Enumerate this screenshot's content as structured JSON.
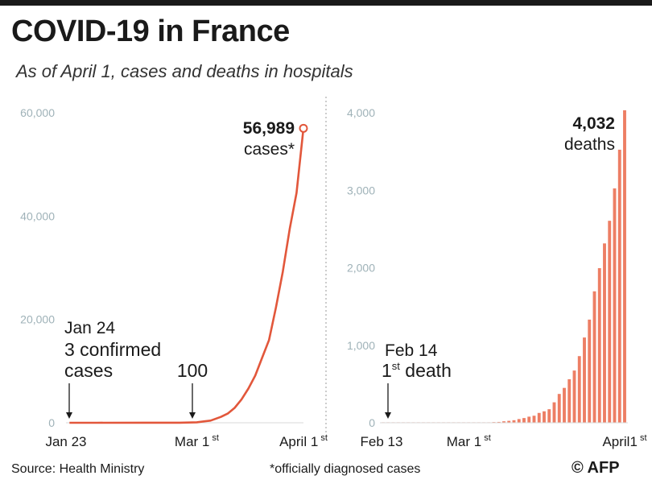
{
  "title": "COVID-19 in France",
  "subtitle": "As of April 1, cases and deaths in hospitals",
  "footer": {
    "source": "Source: Health Ministry",
    "note": "*officially  diagnosed cases",
    "credit": "© AFP"
  },
  "colors": {
    "accent": "#e2573b",
    "bar": "#ed7e64",
    "axis_text": "#9fb2b8",
    "text": "#1a1a1a"
  },
  "chart_data": [
    {
      "type": "line",
      "ylim": [
        0,
        60000
      ],
      "yticks": [
        0,
        20000,
        40000,
        60000
      ],
      "ytick_labels": [
        "0",
        "20,000",
        "40,000",
        "60,000"
      ],
      "xlim": [
        "2020-01-23",
        "2020-04-01"
      ],
      "xtick_labels": [
        {
          "date": "2020-01-23",
          "main": "Jan 23",
          "sup": ""
        },
        {
          "date": "2020-03-01",
          "main": "Mar 1",
          "sup": "st"
        },
        {
          "date": "2020-04-01",
          "main": "April 1",
          "sup": "st"
        }
      ],
      "series": [
        {
          "x": [
            "2020-01-24",
            "2020-02-01",
            "2020-02-15",
            "2020-02-25",
            "2020-03-01",
            "2020-03-05",
            "2020-03-08",
            "2020-03-10",
            "2020-03-12",
            "2020-03-14",
            "2020-03-16",
            "2020-03-18",
            "2020-03-20",
            "2020-03-22",
            "2020-03-24",
            "2020-03-26",
            "2020-03-28",
            "2020-03-30",
            "2020-04-01"
          ],
          "y": [
            3,
            6,
            12,
            14,
            100,
            420,
            1130,
            1780,
            2880,
            4500,
            6630,
            9130,
            12600,
            16000,
            22300,
            29200,
            37500,
            44500,
            56989
          ]
        }
      ],
      "annotations": [
        {
          "id": "peak",
          "value": "56,989",
          "label": "cases*"
        },
        {
          "id": "jan24",
          "date_label": "Jan 24",
          "line1": "3 confirmed",
          "line2": "cases"
        },
        {
          "id": "mar1",
          "label": "100"
        }
      ]
    },
    {
      "type": "bar",
      "ylim": [
        0,
        4000
      ],
      "yticks": [
        0,
        1000,
        2000,
        3000,
        4000
      ],
      "ytick_labels": [
        "0",
        "1,000",
        "2,000",
        "3,000",
        "4,000"
      ],
      "xlim": [
        "2020-02-13",
        "2020-04-01"
      ],
      "xtick_labels": [
        {
          "date": "2020-02-13",
          "main": "Feb 13",
          "sup": ""
        },
        {
          "date": "2020-03-01",
          "main": "Mar 1",
          "sup": "st"
        },
        {
          "date": "2020-04-01",
          "main": "April1",
          "sup": "st"
        }
      ],
      "categories": [
        "2020-02-13",
        "2020-02-14",
        "2020-02-15",
        "2020-02-16",
        "2020-02-17",
        "2020-02-18",
        "2020-02-19",
        "2020-02-20",
        "2020-02-21",
        "2020-02-22",
        "2020-02-23",
        "2020-02-24",
        "2020-02-25",
        "2020-02-26",
        "2020-02-27",
        "2020-02-28",
        "2020-02-29",
        "2020-03-01",
        "2020-03-02",
        "2020-03-03",
        "2020-03-04",
        "2020-03-05",
        "2020-03-06",
        "2020-03-07",
        "2020-03-08",
        "2020-03-09",
        "2020-03-10",
        "2020-03-11",
        "2020-03-12",
        "2020-03-13",
        "2020-03-14",
        "2020-03-15",
        "2020-03-16",
        "2020-03-17",
        "2020-03-18",
        "2020-03-19",
        "2020-03-20",
        "2020-03-21",
        "2020-03-22",
        "2020-03-23",
        "2020-03-24",
        "2020-03-25",
        "2020-03-26",
        "2020-03-27",
        "2020-03-28",
        "2020-03-29",
        "2020-03-30",
        "2020-03-31",
        "2020-04-01"
      ],
      "values": [
        0,
        1,
        1,
        1,
        1,
        1,
        1,
        1,
        1,
        1,
        1,
        1,
        1,
        2,
        2,
        2,
        2,
        2,
        3,
        4,
        4,
        6,
        9,
        11,
        19,
        25,
        33,
        48,
        61,
        79,
        91,
        127,
        148,
        175,
        264,
        372,
        450,
        562,
        674,
        860,
        1100,
        1331,
        1696,
        1995,
        2314,
        2606,
        3024,
        3523,
        4032
      ],
      "annotations": [
        {
          "id": "peak",
          "value": "4,032",
          "label": "deaths"
        },
        {
          "id": "feb14",
          "date_label": "Feb 14",
          "sup": "st",
          "label_main": "1",
          "label_rest": " death"
        }
      ]
    }
  ]
}
